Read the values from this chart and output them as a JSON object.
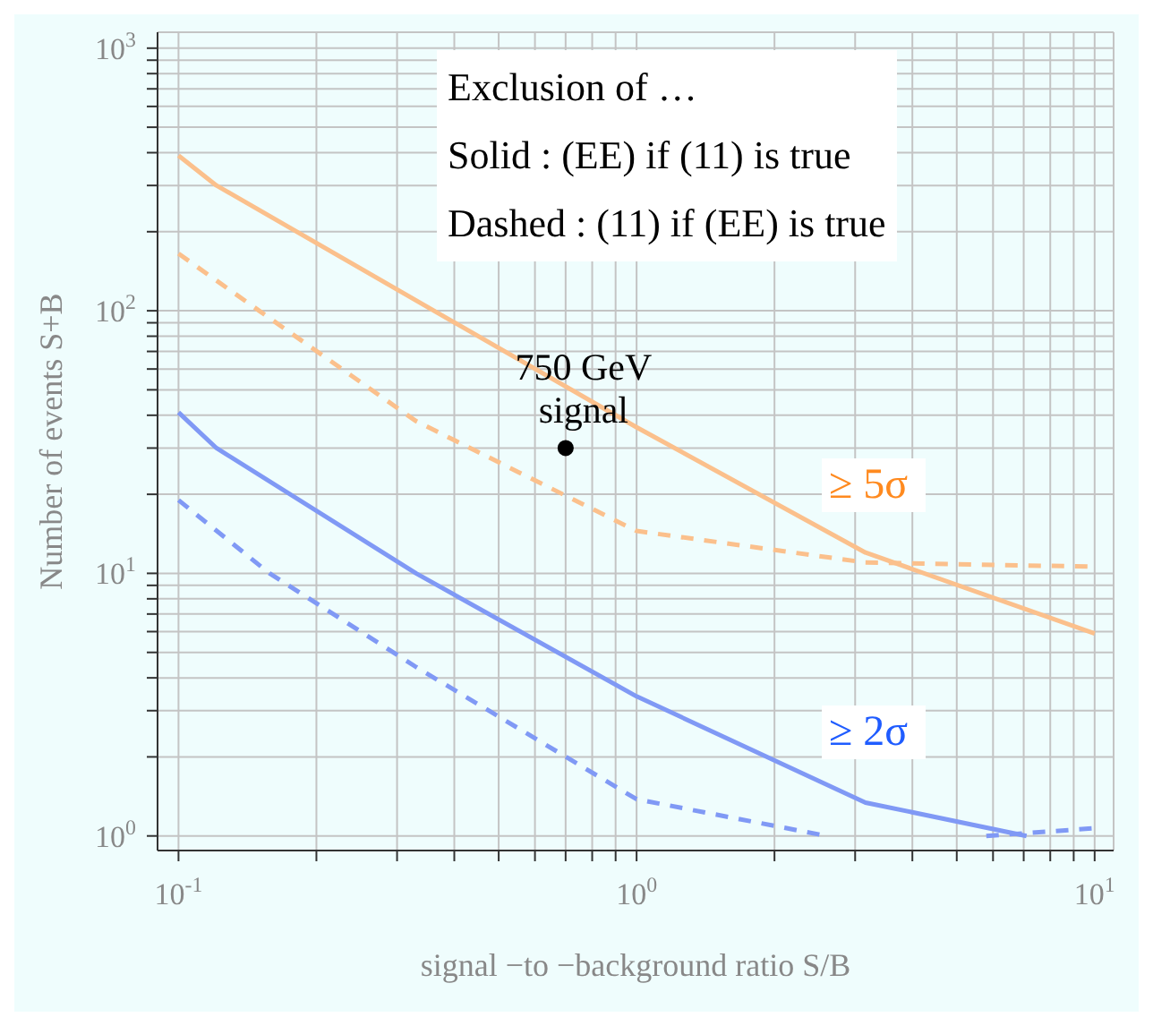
{
  "chart_data": {
    "type": "line",
    "xlabel": "signal −to −background ratio S/B",
    "ylabel": "Number of events S+B",
    "log": "xy",
    "grid": true,
    "xlim": [
      0.09,
      11
    ],
    "ylim": [
      0.88,
      1150
    ],
    "xticks": [
      {
        "value": 0.1,
        "label": "10$^{-1}$"
      },
      {
        "value": 0.2,
        "label": null
      },
      {
        "value": 0.3,
        "label": null
      },
      {
        "value": 0.4,
        "label": null
      },
      {
        "value": 0.5,
        "label": null
      },
      {
        "value": 0.6,
        "label": null
      },
      {
        "value": 0.7,
        "label": null
      },
      {
        "value": 0.8,
        "label": null
      },
      {
        "value": 0.9,
        "label": null
      },
      {
        "value": 1,
        "label": "10$^{0}$"
      },
      {
        "value": 2,
        "label": null
      },
      {
        "value": 3,
        "label": null
      },
      {
        "value": 4,
        "label": null
      },
      {
        "value": 5,
        "label": null
      },
      {
        "value": 6,
        "label": null
      },
      {
        "value": 7,
        "label": null
      },
      {
        "value": 8,
        "label": null
      },
      {
        "value": 9,
        "label": null
      },
      {
        "value": 10,
        "label": "10$^{1}$"
      }
    ],
    "yticks": [
      {
        "value": 1,
        "label": "10$^{0}$"
      },
      {
        "value": 2,
        "label": null
      },
      {
        "value": 3,
        "label": null
      },
      {
        "value": 4,
        "label": null
      },
      {
        "value": 5,
        "label": null
      },
      {
        "value": 6,
        "label": null
      },
      {
        "value": 7,
        "label": null
      },
      {
        "value": 8,
        "label": null
      },
      {
        "value": 9,
        "label": null
      },
      {
        "value": 10,
        "label": "10$^{1}$"
      },
      {
        "value": 20,
        "label": null
      },
      {
        "value": 30,
        "label": null
      },
      {
        "value": 40,
        "label": null
      },
      {
        "value": 50,
        "label": null
      },
      {
        "value": 60,
        "label": null
      },
      {
        "value": 70,
        "label": null
      },
      {
        "value": 80,
        "label": null
      },
      {
        "value": 90,
        "label": null
      },
      {
        "value": 100,
        "label": "10$^{2}$"
      },
      {
        "value": 200,
        "label": null
      },
      {
        "value": 300,
        "label": null
      },
      {
        "value": 400,
        "label": null
      },
      {
        "value": 500,
        "label": null
      },
      {
        "value": 600,
        "label": null
      },
      {
        "value": 700,
        "label": null
      },
      {
        "value": 800,
        "label": null
      },
      {
        "value": 900,
        "label": null
      },
      {
        "value": 1000,
        "label": "10$^{3}$"
      }
    ],
    "series": [
      {
        "color": "#fbc08c",
        "line_style": "solid",
        "marker": "none",
        "x": [
          0.1,
          0.121,
          1,
          3.16,
          10
        ],
        "values": [
          390,
          300,
          36,
          12,
          5.9
        ]
      },
      {
        "color": "#fbc08c",
        "line_style": "dashed",
        "marker": "none",
        "x": [
          0.1,
          0.15,
          0.33,
          1,
          3.16,
          10
        ],
        "values": [
          165,
          100,
          38,
          14.5,
          11,
          10.6
        ]
      },
      {
        "color": "#8099f5",
        "line_style": "solid",
        "marker": "none",
        "x": [
          0.1,
          0.121,
          0.33,
          1,
          3.16,
          7.1
        ],
        "values": [
          41,
          30,
          10,
          3.4,
          1.34,
          1.0
        ]
      },
      {
        "color": "#8099f5",
        "line_style": "dashed",
        "marker": "none",
        "x": [
          0.1,
          0.158,
          0.33,
          1,
          2.6,
          4,
          5.8,
          10
        ],
        "values": [
          19,
          10,
          4.4,
          1.38,
          1.0,
          null,
          1.0,
          1.07
        ]
      },
      {
        "type": "scatter",
        "color": "#000000",
        "marker": "circle",
        "x": [
          0.7
        ],
        "values": [
          30
        ]
      }
    ],
    "annotations": [
      "Exclusion of …",
      "Solid : (EE) if (11) is true",
      "Dashed : (11) if (EE) is true",
      {
        "text": "750 GeV\nsignal",
        "x": 0.7,
        "y": 30
      },
      "≥ 5σ",
      "≥ 2σ"
    ]
  }
}
